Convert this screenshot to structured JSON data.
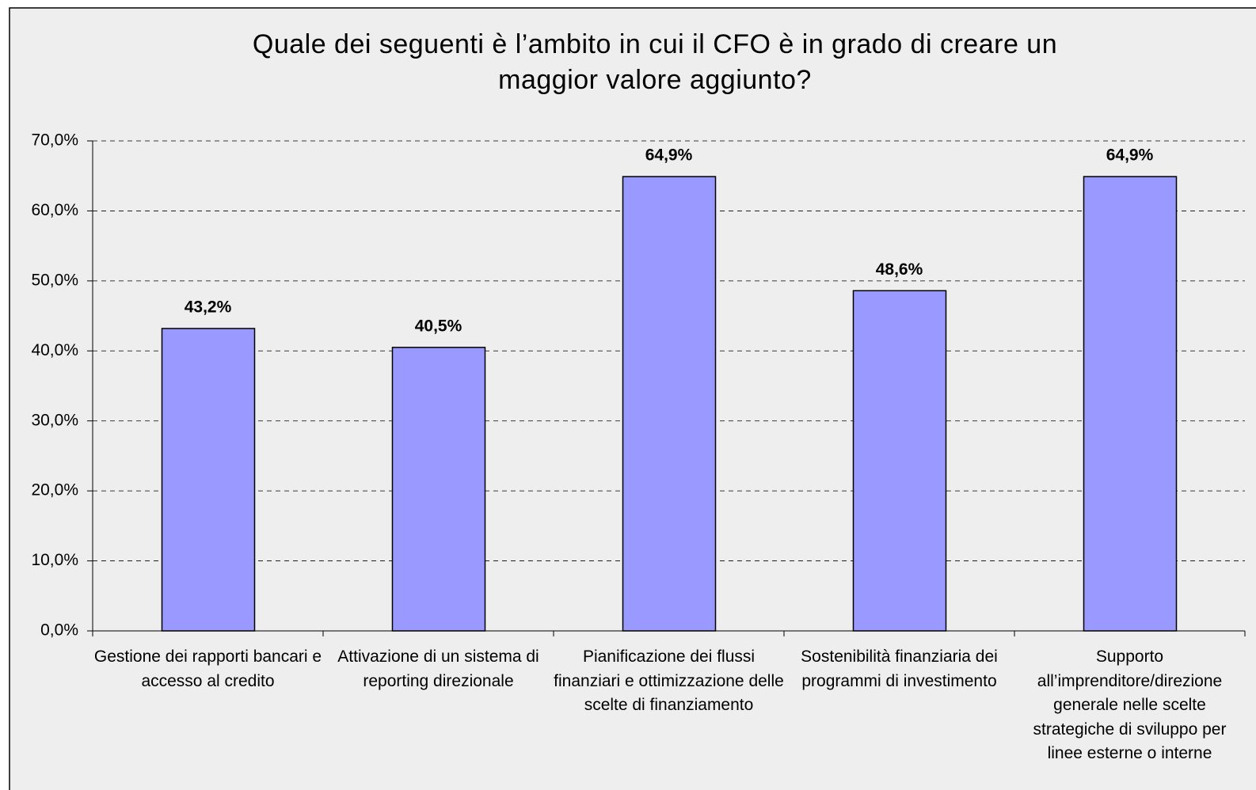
{
  "chart_data": {
    "type": "bar",
    "title": "Quale dei seguenti è l’ambito in cui il CFO è in grado di creare un maggior valore aggiunto?",
    "categories": [
      "Gestione dei rapporti bancari e accesso al credito",
      "Attivazione di un sistema di reporting direzionale",
      "Pianificazione dei flussi finanziari e ottimizzazione delle scelte di finanziamento",
      "Sostenibilità finanziaria dei programmi di investimento",
      "Supporto all’imprenditore/direzione generale nelle scelte strategiche di sviluppo per linee esterne o interne"
    ],
    "values": [
      43.2,
      40.5,
      64.9,
      48.6,
      64.9
    ],
    "value_labels": [
      "43,2%",
      "40,5%",
      "64,9%",
      "48,6%",
      "64,9%"
    ],
    "color": "#9999ff",
    "ylim": [
      0,
      70
    ],
    "yticks": [
      {
        "value": 0,
        "label": "0,0%"
      },
      {
        "value": 10,
        "label": "10,0%"
      },
      {
        "value": 20,
        "label": "20,0%"
      },
      {
        "value": 30,
        "label": "30,0%"
      },
      {
        "value": 40,
        "label": "40,0%"
      },
      {
        "value": 50,
        "label": "50,0%"
      },
      {
        "value": 60,
        "label": "60,0%"
      },
      {
        "value": 70,
        "label": "70,0%"
      }
    ],
    "grid": true
  }
}
